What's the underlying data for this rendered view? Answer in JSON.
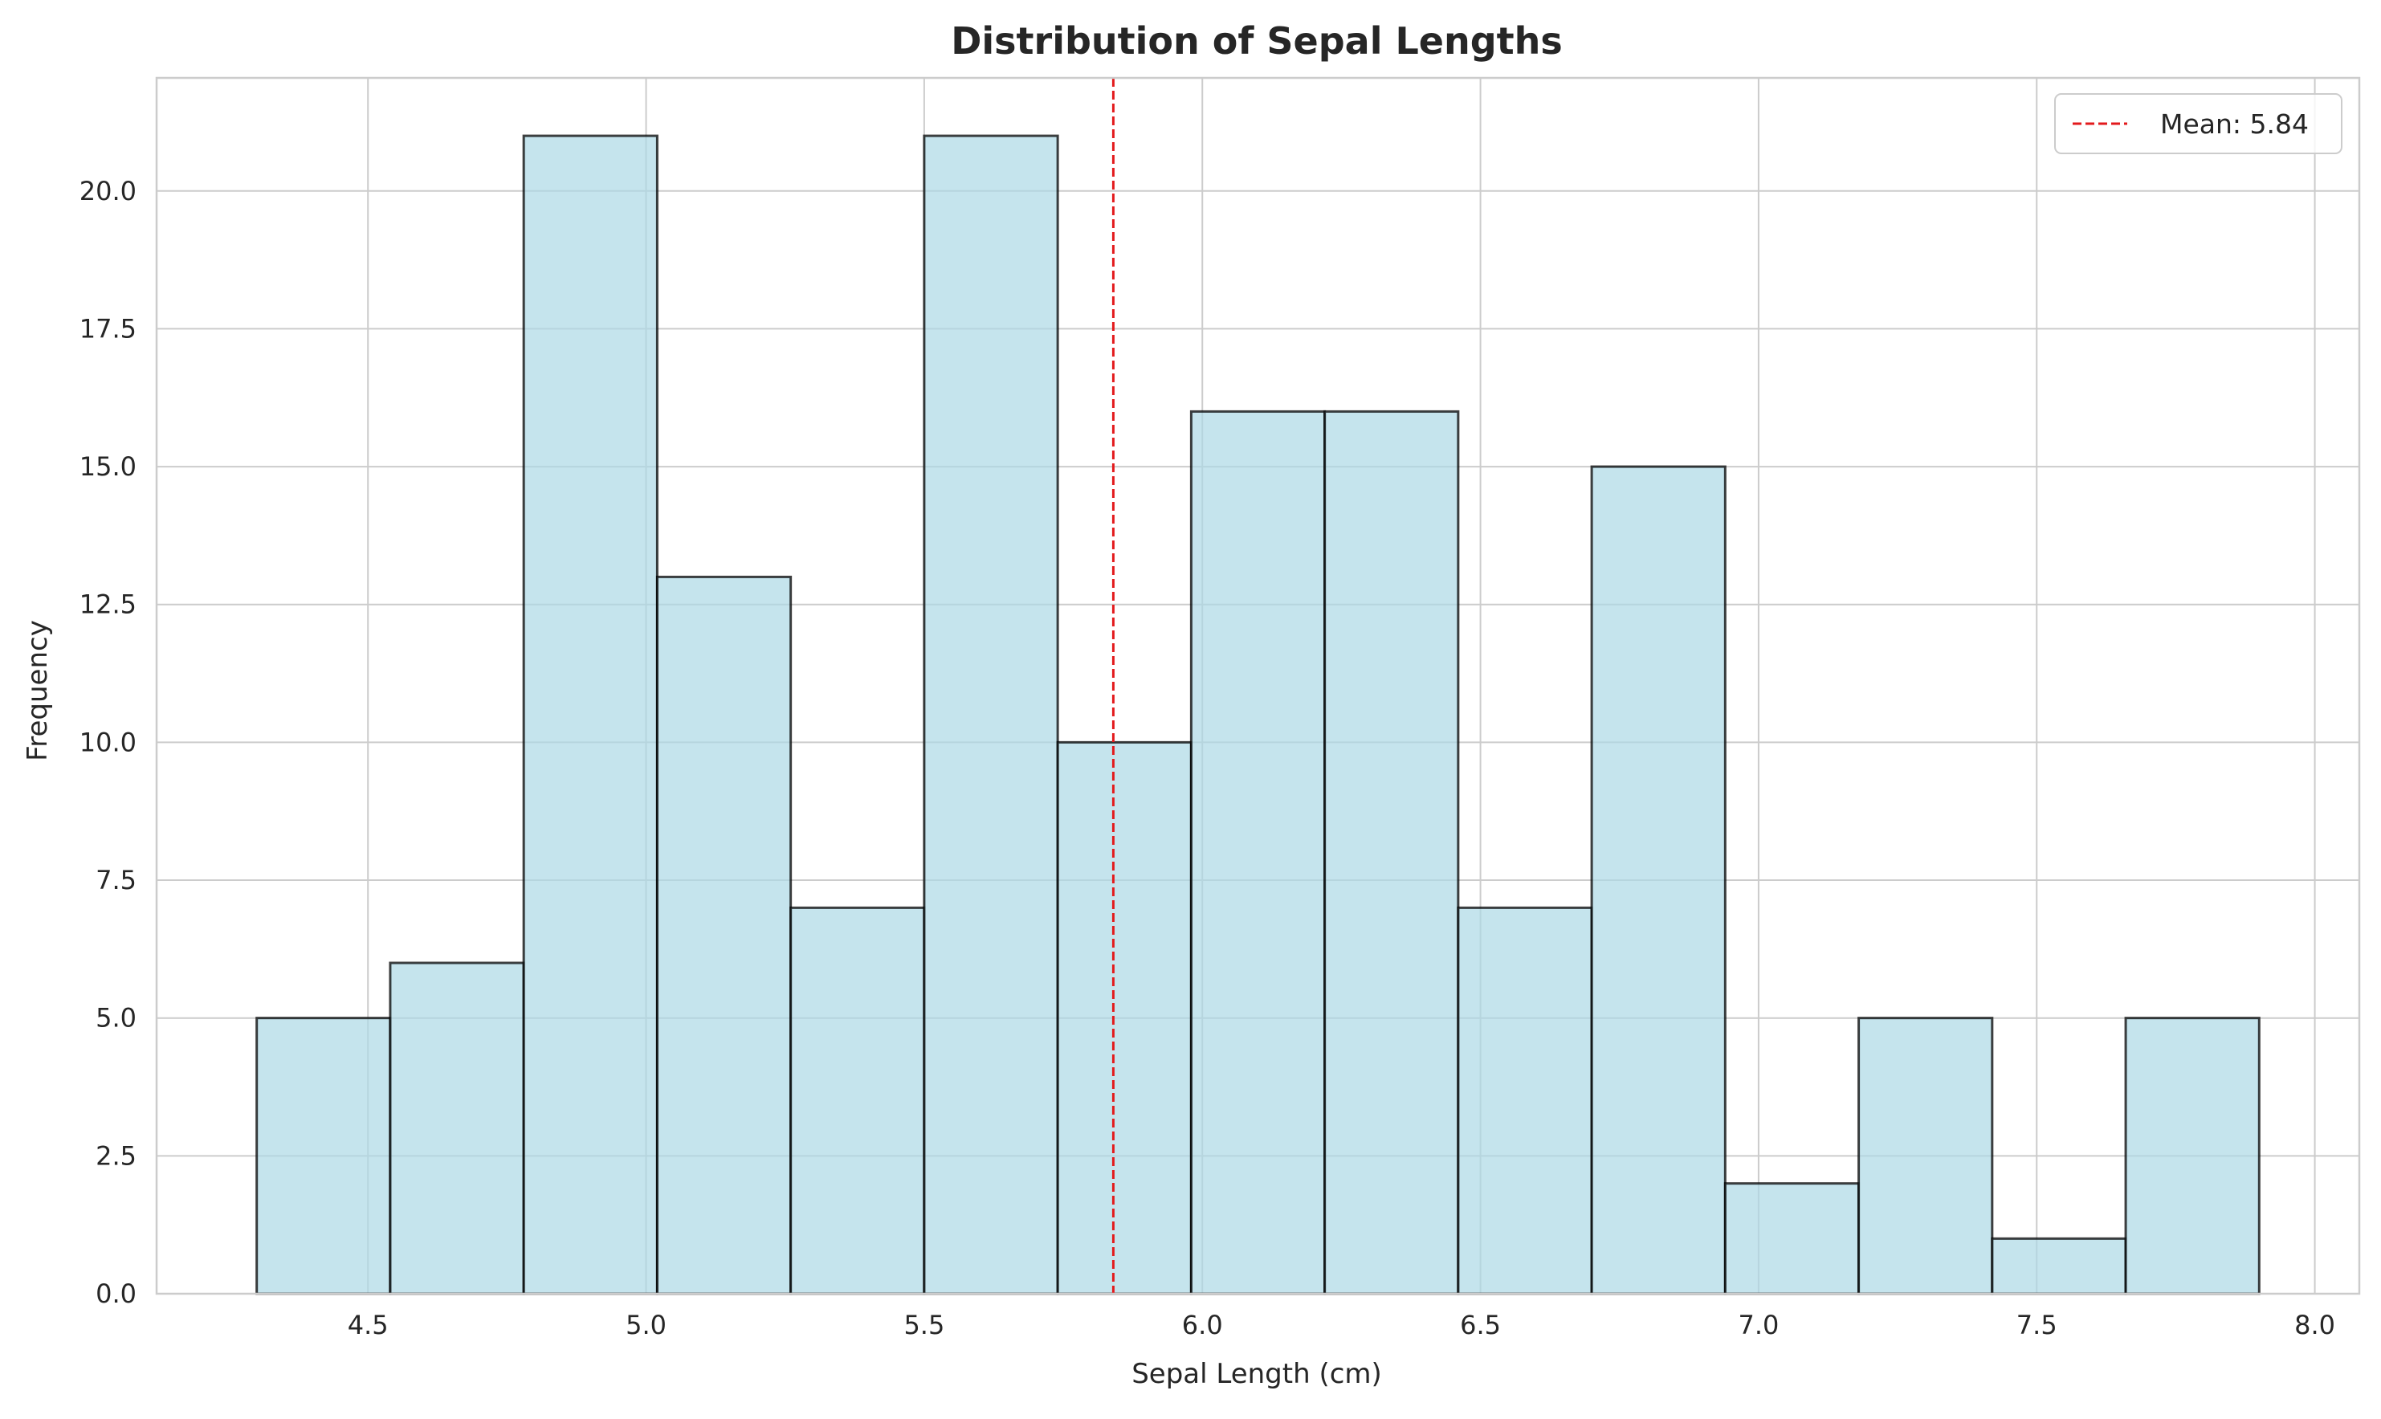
{
  "chart_data": {
    "type": "bar",
    "subtype": "histogram",
    "title": "Distribution of Sepal Lengths",
    "xlabel": "Sepal Length (cm)",
    "ylabel": "Frequency",
    "bin_edges": [
      4.3,
      4.54,
      4.78,
      5.02,
      5.26,
      5.5,
      5.74,
      5.98,
      6.22,
      6.46,
      6.7,
      6.94,
      7.18,
      7.42,
      7.66,
      7.9
    ],
    "values": [
      5,
      6,
      21,
      13,
      7,
      21,
      10,
      16,
      16,
      7,
      15,
      2,
      5,
      1,
      5
    ],
    "xlim": [
      4.12,
      8.08
    ],
    "ylim": [
      0,
      22.05
    ],
    "xticks": [
      "4.5",
      "5.0",
      "5.5",
      "6.0",
      "6.5",
      "7.0",
      "7.5",
      "8.0"
    ],
    "yticks": [
      "0.0",
      "2.5",
      "5.0",
      "7.5",
      "10.0",
      "12.5",
      "15.0",
      "17.5",
      "20.0"
    ],
    "grid": true,
    "mean_line": {
      "value": 5.84,
      "label": "Mean: 5.84",
      "color": "#e31a1c",
      "style": "dashed"
    },
    "legend": {
      "position": "top-right",
      "entries": [
        "Mean: 5.84"
      ]
    },
    "colors": {
      "bar_fill": "#add8e6",
      "bar_edge": "#000000",
      "grid": "#cccccc",
      "axes_edge": "#cccccc"
    }
  }
}
